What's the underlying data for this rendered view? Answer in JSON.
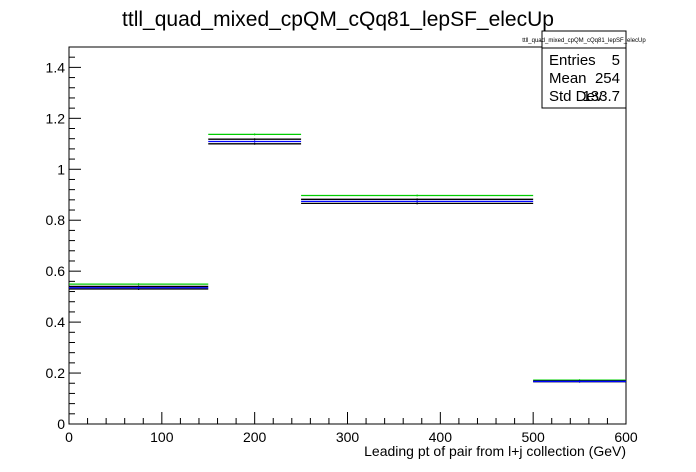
{
  "chart_data": {
    "type": "line",
    "title": "ttll_quad_mixed_cpQM_cQq81_lepSF_elecUp",
    "xlabel": "Leading pt of pair from l+j collection (GeV)",
    "ylabel": "",
    "xlim": [
      0,
      600
    ],
    "ylim": [
      0,
      1.48
    ],
    "x_ticks": [
      "0",
      "100",
      "200",
      "300",
      "400",
      "500",
      "600"
    ],
    "y_ticks": [
      "0",
      "0.2",
      "0.4",
      "0.6",
      "0.8",
      "1",
      "1.2",
      "1.4"
    ],
    "x_tick_values": [
      0,
      100,
      200,
      300,
      400,
      500,
      600
    ],
    "y_tick_values": [
      0,
      0.2,
      0.4,
      0.6,
      0.8,
      1.0,
      1.2,
      1.4
    ],
    "bin_edges": [
      0,
      150,
      250,
      500,
      600
    ],
    "series": [
      {
        "color": "#00cc00",
        "values": [
          0.549,
          1.137,
          0.897,
          0.172
        ]
      },
      {
        "color": "#000000",
        "values": [
          0.54,
          1.118,
          0.882,
          0.169
        ]
      },
      {
        "color": "#000000",
        "values": [
          0.53,
          1.1,
          0.866,
          0.166
        ]
      },
      {
        "color": "#0000ff",
        "values": [
          0.535,
          1.109,
          0.874,
          0.167
        ]
      }
    ],
    "stats_box": {
      "name": "ttll_quad_mixed_cpQM_cQq81_lepSF_elecUp",
      "rows": [
        {
          "label": "Entries",
          "value": "5"
        },
        {
          "label": "Mean",
          "value": "254"
        },
        {
          "label": "Std Dev",
          "value": "133.7"
        }
      ]
    },
    "grid": false,
    "legend": "none"
  }
}
